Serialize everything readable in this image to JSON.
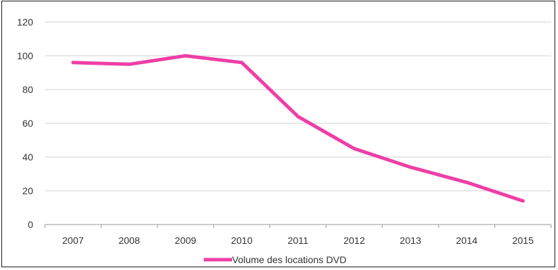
{
  "chart_data": {
    "type": "line",
    "title": "",
    "xlabel": "",
    "ylabel": "",
    "categories": [
      "2007",
      "2008",
      "2009",
      "2010",
      "2011",
      "2012",
      "2013",
      "2014",
      "2015"
    ],
    "series": [
      {
        "name": "Volume des locations DVD",
        "values": [
          96,
          95,
          100,
          96,
          64,
          45,
          34,
          25,
          14
        ],
        "color": "#ee3fa6"
      }
    ],
    "ylim": [
      0,
      120
    ],
    "yticks": [
      "0",
      "20",
      "40",
      "60",
      "80",
      "100",
      "120"
    ],
    "grid": true,
    "legend_position": "bottom-center"
  },
  "colors": {
    "series": "#ee3fa6",
    "grid": "#d0d0d0",
    "axis": "#999999",
    "border": "#1a1a1a"
  }
}
